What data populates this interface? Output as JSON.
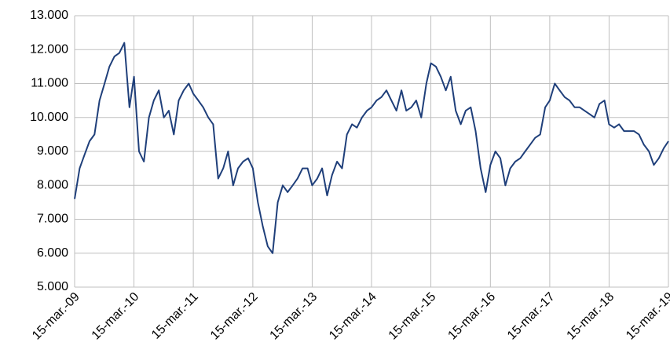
{
  "chart_data": {
    "type": "line",
    "x": [
      "2009-03-15",
      "2009-04-15",
      "2009-05-15",
      "2009-06-15",
      "2009-07-15",
      "2009-08-15",
      "2009-09-15",
      "2009-10-15",
      "2009-11-15",
      "2009-12-15",
      "2010-01-15",
      "2010-02-15",
      "2010-03-15",
      "2010-04-15",
      "2010-05-15",
      "2010-06-15",
      "2010-07-15",
      "2010-08-15",
      "2010-09-15",
      "2010-10-15",
      "2010-11-15",
      "2010-12-15",
      "2011-01-15",
      "2011-02-15",
      "2011-03-15",
      "2011-04-15",
      "2011-05-15",
      "2011-06-15",
      "2011-07-15",
      "2011-08-15",
      "2011-09-15",
      "2011-10-15",
      "2011-11-15",
      "2011-12-15",
      "2012-01-15",
      "2012-02-15",
      "2012-03-15",
      "2012-04-15",
      "2012-05-15",
      "2012-06-15",
      "2012-07-15",
      "2012-08-15",
      "2012-09-15",
      "2012-10-15",
      "2012-11-15",
      "2012-12-15",
      "2013-01-15",
      "2013-02-15",
      "2013-03-15",
      "2013-04-15",
      "2013-05-15",
      "2013-06-15",
      "2013-07-15",
      "2013-08-15",
      "2013-09-15",
      "2013-10-15",
      "2013-11-15",
      "2013-12-15",
      "2014-01-15",
      "2014-02-15",
      "2014-03-15",
      "2014-04-15",
      "2014-05-15",
      "2014-06-15",
      "2014-07-15",
      "2014-08-15",
      "2014-09-15",
      "2014-10-15",
      "2014-11-15",
      "2014-12-15",
      "2015-01-15",
      "2015-02-15",
      "2015-03-15",
      "2015-04-15",
      "2015-05-15",
      "2015-06-15",
      "2015-07-15",
      "2015-08-15",
      "2015-09-15",
      "2015-10-15",
      "2015-11-15",
      "2015-12-15",
      "2016-01-15",
      "2016-02-15",
      "2016-03-15",
      "2016-04-15",
      "2016-05-15",
      "2016-06-15",
      "2016-07-15",
      "2016-08-15",
      "2016-09-15",
      "2016-10-15",
      "2016-11-15",
      "2016-12-15",
      "2017-01-15",
      "2017-02-15",
      "2017-03-15",
      "2017-04-15",
      "2017-05-15",
      "2017-06-15",
      "2017-07-15",
      "2017-08-15",
      "2017-09-15",
      "2017-10-15",
      "2017-11-15",
      "2017-12-15",
      "2018-01-15",
      "2018-02-15",
      "2018-03-15",
      "2018-04-15",
      "2018-05-15",
      "2018-06-15",
      "2018-07-15",
      "2018-08-15",
      "2018-09-15",
      "2018-10-15",
      "2018-11-15",
      "2018-12-15",
      "2019-01-15",
      "2019-02-15",
      "2019-03-15"
    ],
    "series": [
      {
        "color": "#1f3f7a",
        "values": [
          7600,
          8500,
          8900,
          9300,
          9500,
          10500,
          11000,
          11500,
          11800,
          11900,
          12200,
          10300,
          11200,
          9000,
          8700,
          10000,
          10500,
          10800,
          10000,
          10200,
          9500,
          10500,
          10800,
          11000,
          10700,
          10500,
          10300,
          10000,
          9800,
          8200,
          8500,
          9000,
          8000,
          8500,
          8700,
          8800,
          8500,
          7500,
          6800,
          6200,
          6000,
          7500,
          8000,
          7800,
          8000,
          8200,
          8500,
          8500,
          8000,
          8200,
          8500,
          7700,
          8300,
          8700,
          8500,
          9500,
          9800,
          9700,
          10000,
          10200,
          10300,
          10500,
          10600,
          10800,
          10500,
          10200,
          10800,
          10200,
          10300,
          10500,
          10000,
          11000,
          11600,
          11500,
          11200,
          10800,
          11200,
          10200,
          9800,
          10200,
          10300,
          9600,
          8500,
          7800,
          8600,
          9000,
          8800,
          8000,
          8500,
          8700,
          8800,
          9000,
          9200,
          9400,
          9500,
          10300,
          10500,
          11000,
          10800,
          10600,
          10500,
          10300,
          10300,
          10200,
          10100,
          10000,
          10400,
          10500,
          9800,
          9700,
          9800,
          9600,
          9600,
          9600,
          9500,
          9200,
          9000,
          8600,
          8800,
          9100,
          9300
        ]
      }
    ],
    "xlim": [
      "2009-03-15",
      "2019-03-15"
    ],
    "xticks": [
      {
        "value": "2009-03-15",
        "label": "15-mar.-09"
      },
      {
        "value": "2010-03-15",
        "label": "15-mar.-10"
      },
      {
        "value": "2011-03-15",
        "label": "15-mar.-11"
      },
      {
        "value": "2012-03-15",
        "label": "15-mar.-12"
      },
      {
        "value": "2013-03-15",
        "label": "15-mar.-13"
      },
      {
        "value": "2014-03-15",
        "label": "15-mar.-14"
      },
      {
        "value": "2015-03-15",
        "label": "15-mar.-15"
      },
      {
        "value": "2016-03-15",
        "label": "15-mar.-16"
      },
      {
        "value": "2017-03-15",
        "label": "15-mar.-17"
      },
      {
        "value": "2018-03-15",
        "label": "15-mar.-18"
      },
      {
        "value": "2019-03-15",
        "label": "15-mar.-19"
      }
    ],
    "ylim": [
      5000,
      13000
    ],
    "yticks": [
      {
        "value": 5000,
        "label": "5.000"
      },
      {
        "value": 6000,
        "label": "6.000"
      },
      {
        "value": 7000,
        "label": "7.000"
      },
      {
        "value": 8000,
        "label": "8.000"
      },
      {
        "value": 9000,
        "label": "9.000"
      },
      {
        "value": 10000,
        "label": "10.000"
      },
      {
        "value": 11000,
        "label": "11.000"
      },
      {
        "value": 12000,
        "label": "12.000"
      },
      {
        "value": 13000,
        "label": "13.000"
      }
    ],
    "grid": true
  }
}
